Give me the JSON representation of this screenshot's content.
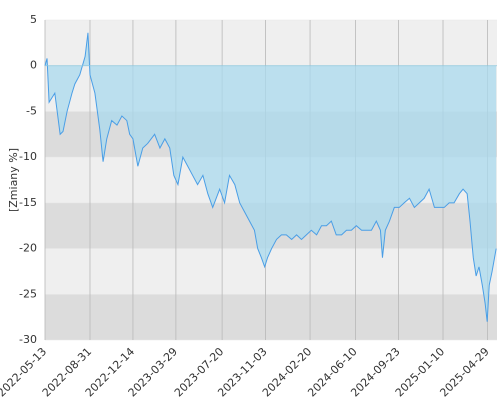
{
  "chart_data": {
    "type": "area",
    "ylabel": "[Zmiany %]",
    "x": [
      "2022-05-13",
      "2022-05-18",
      "2022-05-23",
      "2022-06-06",
      "2022-06-19",
      "2022-06-26",
      "2022-07-06",
      "2022-07-18",
      "2022-07-25",
      "2022-08-06",
      "2022-08-19",
      "2022-08-26",
      "2022-08-31",
      "2022-09-12",
      "2022-09-24",
      "2022-10-02",
      "2022-10-11",
      "2022-10-23",
      "2022-11-05",
      "2022-11-17",
      "2022-11-29",
      "2022-12-06",
      "2022-12-14",
      "2022-12-26",
      "2023-01-07",
      "2023-01-19",
      "2023-02-05",
      "2023-02-18",
      "2023-03-02",
      "2023-03-14",
      "2023-03-24",
      "2023-04-03",
      "2023-04-15",
      "2023-04-27",
      "2023-05-09",
      "2023-05-21",
      "2023-06-03",
      "2023-06-15",
      "2023-06-27",
      "2023-07-14",
      "2023-07-26",
      "2023-08-07",
      "2023-08-20",
      "2023-09-01",
      "2023-09-13",
      "2023-09-25",
      "2023-10-07",
      "2023-10-15",
      "2023-10-24",
      "2023-11-01",
      "2023-11-08",
      "2023-11-18",
      "2023-11-30",
      "2023-12-12",
      "2023-12-24",
      "2024-01-06",
      "2024-01-18",
      "2024-01-30",
      "2024-02-11",
      "2024-02-23",
      "2024-03-07",
      "2024-03-19",
      "2024-03-31",
      "2024-04-12",
      "2024-04-24",
      "2024-05-07",
      "2024-05-19",
      "2024-05-31",
      "2024-06-12",
      "2024-06-25",
      "2024-07-07",
      "2024-07-19",
      "2024-07-31",
      "2024-08-10",
      "2024-08-15",
      "2024-08-22",
      "2024-09-01",
      "2024-09-13",
      "2024-09-25",
      "2024-10-07",
      "2024-10-20",
      "2024-11-01",
      "2024-11-13",
      "2024-11-25",
      "2024-12-07",
      "2024-12-20",
      "2025-01-01",
      "2025-01-13",
      "2025-01-25",
      "2025-02-06",
      "2025-02-19",
      "2025-02-28",
      "2025-03-10",
      "2025-03-17",
      "2025-03-25",
      "2025-04-01",
      "2025-04-08",
      "2025-04-16",
      "2025-04-23",
      "2025-04-28",
      "2025-05-03",
      "2025-05-10",
      "2025-05-20"
    ],
    "series": [
      {
        "name": "Zmiany",
        "color": "#4a9ee6",
        "fill": "#a9d9ee",
        "values": [
          0,
          0.8,
          -4,
          -3,
          -7.5,
          -7.2,
          -5,
          -3,
          -2,
          -1,
          1,
          3.6,
          -1,
          -3,
          -7,
          -10.5,
          -8,
          -6,
          -6.5,
          -5.5,
          -6,
          -7.5,
          -8,
          -11,
          -9,
          -8.5,
          -7.5,
          -9,
          -8,
          -9,
          -12,
          -13,
          -10,
          -11,
          -12,
          -13,
          -12,
          -14,
          -15.5,
          -13.5,
          -15,
          -12,
          -13,
          -15,
          -16,
          -17,
          -18,
          -20,
          -21,
          -22,
          -21,
          -20,
          -19,
          -18.5,
          -18.5,
          -19,
          -18.5,
          -19,
          -18.5,
          -18,
          -18.5,
          -17.5,
          -17.5,
          -17,
          -18.5,
          -18.5,
          -18,
          -18,
          -17.5,
          -18,
          -18,
          -18,
          -17,
          -18,
          -21,
          -18,
          -17,
          -15.5,
          -15.5,
          -15,
          -14.5,
          -15.5,
          -15,
          -14.5,
          -13.5,
          -15.5,
          -15.5,
          -15.5,
          -15,
          -15,
          -14,
          -13.5,
          -14,
          -17,
          -21,
          -23,
          -22,
          -24,
          -26,
          -28,
          -24,
          -22.5,
          -20
        ]
      }
    ],
    "xlim": [
      "2022-05-13",
      "2025-05-22"
    ],
    "xticks": [
      "2022-05-13",
      "2022-08-31",
      "2022-12-14",
      "2023-03-29",
      "2023-07-20",
      "2023-11-03",
      "2024-02-20",
      "2024-06-10",
      "2024-09-23",
      "2025-01-10",
      "2025-04-29"
    ],
    "ylim": [
      -30,
      5
    ],
    "yticks": [
      5,
      0,
      -5,
      -10,
      -15,
      -20,
      -25,
      -30
    ],
    "grid": true
  }
}
